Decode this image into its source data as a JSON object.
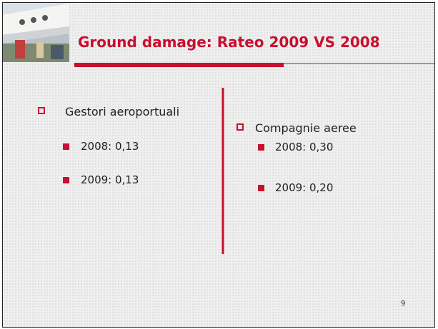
{
  "header": {
    "title": "Ground damage: Rateo 2009 VS 2008"
  },
  "columns": [
    {
      "heading": "Gestori aeroportuali",
      "items": [
        "2008: 0,13",
        "2009: 0,13"
      ]
    },
    {
      "heading": "Compagnie aeree",
      "items": [
        "2008: 0,30",
        "2009: 0,20"
      ]
    }
  ],
  "page_number": "9"
}
